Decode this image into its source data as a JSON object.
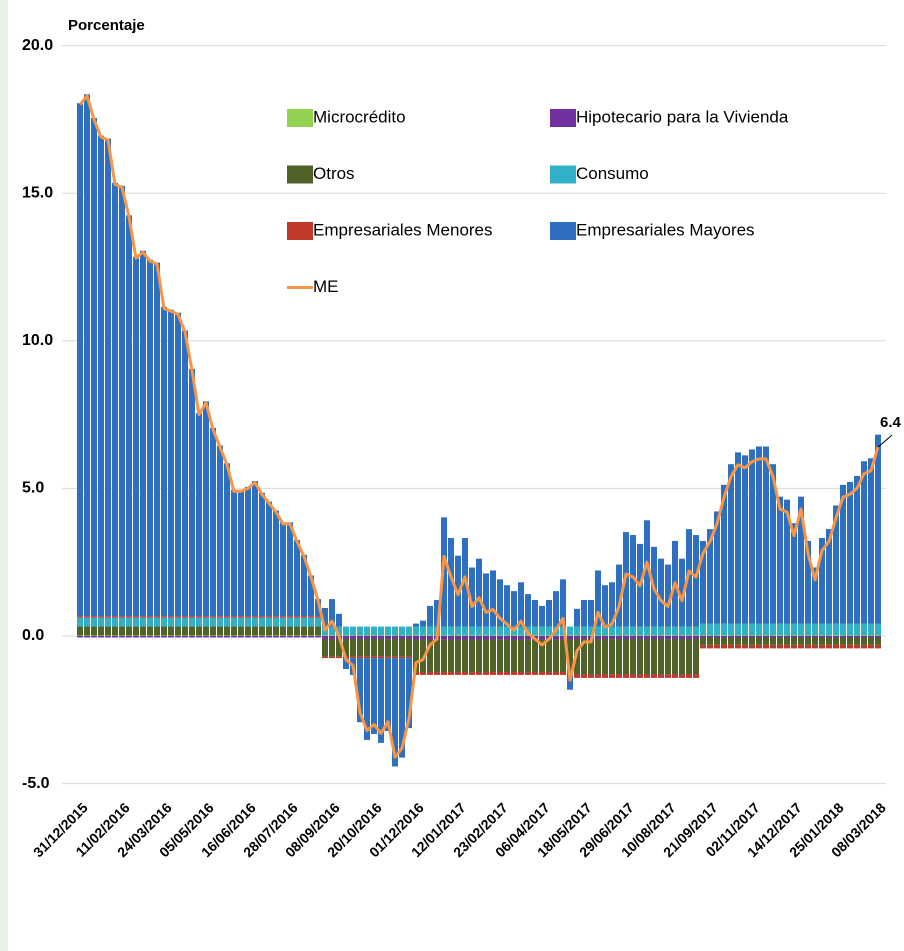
{
  "chart_data": {
    "type": "stacked-bar-line",
    "title": "Porcentaje",
    "categories": [
      "31/12/2015",
      null,
      null,
      null,
      null,
      null,
      "11/02/2016",
      null,
      null,
      null,
      null,
      null,
      "24/03/2016",
      null,
      null,
      null,
      null,
      null,
      "05/05/2016",
      null,
      null,
      null,
      null,
      null,
      "16/06/2016",
      null,
      null,
      null,
      null,
      null,
      "28/07/2016",
      null,
      null,
      null,
      null,
      null,
      "08/09/2016",
      null,
      null,
      null,
      null,
      null,
      "20/10/2016",
      null,
      null,
      null,
      null,
      null,
      "01/12/2016",
      null,
      null,
      null,
      null,
      null,
      "12/01/2017",
      null,
      null,
      null,
      null,
      null,
      "23/02/2017",
      null,
      null,
      null,
      null,
      null,
      "06/04/2017",
      null,
      null,
      null,
      null,
      null,
      "18/05/2017",
      null,
      null,
      null,
      null,
      null,
      "29/06/2017",
      null,
      null,
      null,
      null,
      null,
      "10/08/2017",
      null,
      null,
      null,
      null,
      null,
      "21/09/2017",
      null,
      null,
      null,
      null,
      null,
      "02/11/2017",
      null,
      null,
      null,
      null,
      null,
      "14/12/2017",
      null,
      null,
      null,
      null,
      null,
      "25/01/2018",
      null,
      null,
      null,
      null,
      null,
      "08/03/2018"
    ],
    "series": [
      {
        "name": "Microcrédito",
        "color": "#92d050",
        "kind": "bar",
        "values": [
          0.02,
          0.02,
          0.02,
          0.02,
          0.02,
          0.02,
          0.02,
          0.02,
          0.02,
          0.02,
          0.02,
          0.02,
          0.02,
          0.02,
          0.02,
          0.02,
          0.02,
          0.02,
          0.02,
          0.02,
          0.02,
          0.02,
          0.02,
          0.02,
          0.02,
          0.02,
          0.02,
          0.02,
          0.02,
          0.02,
          0.02,
          0.02,
          0.02,
          0.02,
          0.02,
          0.02,
          0.02,
          0.02,
          0.02,
          0.02,
          0.02,
          0.02,
          0.02,
          0.02,
          0.02,
          0.02,
          0.02,
          0.02,
          0.02,
          0.02,
          0.02,
          0.02,
          0.02,
          0.02,
          0.02,
          0.02,
          0.02,
          0.02,
          0.02,
          0.02,
          0.02,
          0.02,
          0.02,
          0.02,
          0.02,
          0.02,
          0.02,
          0.02,
          0.02,
          0.02,
          0.02,
          0.02,
          0.02,
          0.02,
          0.02,
          0.02,
          0.02,
          0.02,
          0.02,
          0.02,
          0.02,
          0.02,
          0.02,
          0.02,
          0.02,
          0.02,
          0.02,
          0.02,
          0.02,
          0.02,
          0.02,
          0.02,
          0.02,
          0.02,
          0.02,
          0.02,
          0.02,
          0.02,
          0.02,
          0.02,
          0.02,
          0.02,
          0.02,
          0.02,
          0.02,
          0.02,
          0.02,
          0.02,
          0.02,
          0.02,
          0.02,
          0.02,
          0.02,
          0.02,
          0.02
        ]
      },
      {
        "name": "Hipotecario para la Vivienda",
        "color": "#7030a0",
        "kind": "bar",
        "values": [
          -0.05,
          -0.05,
          -0.05,
          -0.05,
          -0.05,
          -0.05,
          -0.05,
          -0.05,
          -0.05,
          -0.05,
          -0.05,
          -0.05,
          -0.05,
          -0.05,
          -0.05,
          -0.05,
          -0.05,
          -0.05,
          -0.05,
          -0.05,
          -0.05,
          -0.05,
          -0.05,
          -0.05,
          -0.05,
          -0.05,
          -0.05,
          -0.05,
          -0.05,
          -0.05,
          -0.05,
          -0.05,
          -0.05,
          -0.05,
          -0.05,
          -0.1,
          -0.1,
          -0.1,
          -0.1,
          -0.1,
          -0.1,
          -0.1,
          -0.1,
          -0.1,
          -0.1,
          -0.1,
          -0.1,
          -0.1,
          -0.12,
          -0.12,
          -0.12,
          -0.12,
          -0.12,
          -0.12,
          -0.12,
          -0.12,
          -0.12,
          -0.12,
          -0.12,
          -0.12,
          -0.12,
          -0.12,
          -0.12,
          -0.12,
          -0.12,
          -0.12,
          -0.12,
          -0.12,
          -0.12,
          -0.12,
          -0.12,
          -0.1,
          -0.1,
          -0.1,
          -0.1,
          -0.1,
          -0.1,
          -0.1,
          -0.1,
          -0.1,
          -0.1,
          -0.1,
          -0.1,
          -0.1,
          -0.1,
          -0.1,
          -0.1,
          -0.1,
          -0.1,
          -0.05,
          -0.05,
          -0.05,
          -0.05,
          -0.05,
          -0.05,
          -0.05,
          -0.05,
          -0.05,
          -0.05,
          -0.05,
          -0.05,
          -0.05,
          -0.05,
          -0.05,
          -0.05,
          -0.05,
          -0.05,
          -0.05,
          -0.05,
          -0.05,
          -0.05,
          -0.05,
          -0.05,
          -0.05,
          -0.05
        ]
      },
      {
        "name": "Otros",
        "color": "#4f6228",
        "kind": "bar",
        "values": [
          0.3,
          0.3,
          0.3,
          0.3,
          0.3,
          0.3,
          0.3,
          0.3,
          0.3,
          0.3,
          0.3,
          0.3,
          0.3,
          0.3,
          0.3,
          0.3,
          0.3,
          0.3,
          0.3,
          0.3,
          0.3,
          0.3,
          0.3,
          0.3,
          0.3,
          0.3,
          0.3,
          0.3,
          0.3,
          0.3,
          0.3,
          0.3,
          0.3,
          0.3,
          0.3,
          -0.6,
          -0.6,
          -0.6,
          -0.6,
          -0.6,
          -0.6,
          -0.6,
          -0.6,
          -0.6,
          -0.6,
          -0.6,
          -0.6,
          -0.6,
          -1.1,
          -1.1,
          -1.1,
          -1.1,
          -1.1,
          -1.1,
          -1.1,
          -1.1,
          -1.1,
          -1.1,
          -1.1,
          -1.1,
          -1.1,
          -1.1,
          -1.1,
          -1.1,
          -1.1,
          -1.1,
          -1.1,
          -1.1,
          -1.1,
          -1.1,
          -1.1,
          -1.2,
          -1.2,
          -1.2,
          -1.2,
          -1.2,
          -1.2,
          -1.2,
          -1.2,
          -1.2,
          -1.2,
          -1.2,
          -1.2,
          -1.2,
          -1.2,
          -1.2,
          -1.2,
          -1.2,
          -1.2,
          -0.25,
          -0.25,
          -0.25,
          -0.25,
          -0.25,
          -0.25,
          -0.25,
          -0.25,
          -0.25,
          -0.25,
          -0.25,
          -0.25,
          -0.25,
          -0.25,
          -0.25,
          -0.25,
          -0.25,
          -0.25,
          -0.25,
          -0.25,
          -0.25,
          -0.25,
          -0.25,
          -0.25,
          -0.25,
          -0.25
        ]
      },
      {
        "name": "Consumo",
        "color": "#31b0c8",
        "kind": "bar",
        "values": [
          0.3,
          0.3,
          0.3,
          0.3,
          0.3,
          0.3,
          0.3,
          0.3,
          0.3,
          0.3,
          0.3,
          0.3,
          0.3,
          0.3,
          0.3,
          0.3,
          0.3,
          0.3,
          0.3,
          0.3,
          0.3,
          0.3,
          0.3,
          0.3,
          0.3,
          0.3,
          0.3,
          0.3,
          0.3,
          0.3,
          0.3,
          0.3,
          0.3,
          0.3,
          0.3,
          0.3,
          0.3,
          0.3,
          0.3,
          0.3,
          0.3,
          0.3,
          0.3,
          0.3,
          0.3,
          0.3,
          0.3,
          0.3,
          0.3,
          0.3,
          0.3,
          0.3,
          0.3,
          0.3,
          0.3,
          0.3,
          0.3,
          0.3,
          0.3,
          0.3,
          0.3,
          0.3,
          0.3,
          0.3,
          0.3,
          0.3,
          0.3,
          0.3,
          0.3,
          0.3,
          0.3,
          0.3,
          0.3,
          0.3,
          0.3,
          0.3,
          0.3,
          0.3,
          0.3,
          0.3,
          0.3,
          0.3,
          0.3,
          0.3,
          0.3,
          0.3,
          0.3,
          0.3,
          0.3,
          0.4,
          0.4,
          0.4,
          0.4,
          0.4,
          0.4,
          0.4,
          0.4,
          0.4,
          0.4,
          0.4,
          0.4,
          0.4,
          0.4,
          0.4,
          0.4,
          0.4,
          0.4,
          0.4,
          0.4,
          0.4,
          0.4,
          0.4,
          0.4,
          0.4,
          0.4
        ]
      },
      {
        "name": "Empresariales Menores",
        "color": "#c0392b",
        "kind": "bar",
        "values": [
          0.05,
          0.05,
          0.05,
          0.05,
          0.05,
          0.05,
          0.05,
          0.05,
          0.05,
          0.05,
          0.05,
          0.05,
          0.05,
          0.05,
          0.05,
          0.05,
          0.05,
          0.05,
          0.05,
          0.05,
          0.05,
          0.05,
          0.05,
          0.05,
          0.05,
          0.05,
          0.05,
          0.05,
          0.05,
          0.05,
          0.05,
          0.05,
          0.05,
          0.05,
          0.05,
          -0.05,
          -0.05,
          -0.05,
          -0.05,
          -0.05,
          -0.05,
          -0.05,
          -0.05,
          -0.05,
          -0.05,
          -0.05,
          -0.05,
          -0.05,
          -0.1,
          -0.1,
          -0.1,
          -0.1,
          -0.1,
          -0.1,
          -0.1,
          -0.1,
          -0.1,
          -0.1,
          -0.1,
          -0.1,
          -0.1,
          -0.1,
          -0.1,
          -0.1,
          -0.1,
          -0.1,
          -0.1,
          -0.1,
          -0.1,
          -0.1,
          -0.1,
          -0.12,
          -0.12,
          -0.12,
          -0.12,
          -0.12,
          -0.12,
          -0.12,
          -0.12,
          -0.12,
          -0.12,
          -0.12,
          -0.12,
          -0.12,
          -0.12,
          -0.12,
          -0.12,
          -0.12,
          -0.12,
          -0.12,
          -0.12,
          -0.12,
          -0.12,
          -0.12,
          -0.12,
          -0.12,
          -0.12,
          -0.12,
          -0.12,
          -0.12,
          -0.12,
          -0.12,
          -0.12,
          -0.12,
          -0.12,
          -0.12,
          -0.12,
          -0.12,
          -0.12,
          -0.12,
          -0.12,
          -0.12,
          -0.12,
          -0.12,
          -0.12
        ]
      },
      {
        "name": "Empresariales Mayores",
        "color": "#2e6fc0",
        "kind": "bar",
        "values": [
          17.38,
          17.68,
          16.88,
          16.28,
          16.18,
          14.68,
          14.58,
          13.58,
          12.18,
          12.38,
          12.08,
          11.98,
          10.48,
          10.38,
          10.28,
          9.68,
          8.38,
          6.88,
          7.28,
          6.38,
          5.78,
          5.18,
          4.28,
          4.28,
          4.38,
          4.58,
          4.18,
          3.88,
          3.58,
          3.18,
          3.18,
          2.58,
          2.08,
          1.38,
          0.58,
          0.63,
          0.93,
          0.43,
          -0.37,
          -0.57,
          -2.17,
          -2.77,
          -2.57,
          -2.87,
          -2.47,
          -3.67,
          -3.37,
          -2.37,
          0.1,
          0.2,
          0.7,
          0.9,
          3.7,
          3.0,
          2.4,
          3.0,
          2.0,
          2.3,
          1.8,
          1.9,
          1.6,
          1.4,
          1.2,
          1.5,
          1.1,
          0.9,
          0.7,
          0.9,
          1.2,
          1.6,
          -0.5,
          0.6,
          0.9,
          0.9,
          1.9,
          1.4,
          1.5,
          2.1,
          3.2,
          3.1,
          2.8,
          3.6,
          2.7,
          2.3,
          2.1,
          2.9,
          2.3,
          3.3,
          3.1,
          2.8,
          3.2,
          3.8,
          4.7,
          5.4,
          5.8,
          5.7,
          5.9,
          6.0,
          6.0,
          5.4,
          4.3,
          4.2,
          3.4,
          4.3,
          2.8,
          1.9,
          2.9,
          3.2,
          4.0,
          4.7,
          4.8,
          5.0,
          5.5,
          5.6,
          6.4
        ]
      },
      {
        "name": "ME",
        "color": "#f79646",
        "kind": "line",
        "values": [
          18.0,
          18.3,
          17.5,
          16.9,
          16.8,
          15.3,
          15.2,
          14.2,
          12.8,
          13.0,
          12.7,
          12.6,
          11.1,
          11.0,
          10.9,
          10.3,
          9.0,
          7.5,
          7.9,
          7.0,
          6.4,
          5.8,
          4.9,
          4.9,
          5.0,
          5.2,
          4.8,
          4.5,
          4.2,
          3.8,
          3.8,
          3.2,
          2.7,
          2.0,
          1.2,
          0.2,
          0.5,
          0.0,
          -0.8,
          -1.0,
          -2.6,
          -3.2,
          -3.0,
          -3.3,
          -2.9,
          -4.1,
          -3.8,
          -2.8,
          -0.9,
          -0.8,
          -0.3,
          -0.1,
          2.7,
          2.0,
          1.4,
          2.0,
          1.0,
          1.3,
          0.8,
          0.9,
          0.6,
          0.4,
          0.2,
          0.5,
          0.1,
          -0.1,
          -0.3,
          -0.1,
          0.2,
          0.6,
          -1.5,
          -0.5,
          -0.2,
          -0.2,
          0.8,
          0.3,
          0.4,
          1.0,
          2.1,
          2.0,
          1.7,
          2.5,
          1.6,
          1.2,
          1.0,
          1.8,
          1.2,
          2.2,
          2.0,
          2.8,
          3.2,
          3.8,
          4.7,
          5.4,
          5.8,
          5.7,
          5.9,
          6.0,
          6.0,
          5.4,
          4.3,
          4.2,
          3.4,
          4.3,
          2.8,
          1.9,
          2.9,
          3.2,
          4.0,
          4.7,
          4.8,
          5.0,
          5.5,
          5.6,
          6.4
        ]
      }
    ],
    "ylim": [
      -5,
      20
    ],
    "yticks": [
      {
        "value": -5,
        "label": "-5.0"
      },
      {
        "value": 0,
        "label": "0.0"
      },
      {
        "value": 5,
        "label": "5.0"
      },
      {
        "value": 10,
        "label": "10.0"
      },
      {
        "value": 15,
        "label": "15.0"
      },
      {
        "value": 20,
        "label": "20.0"
      }
    ],
    "grid": true
  }
}
